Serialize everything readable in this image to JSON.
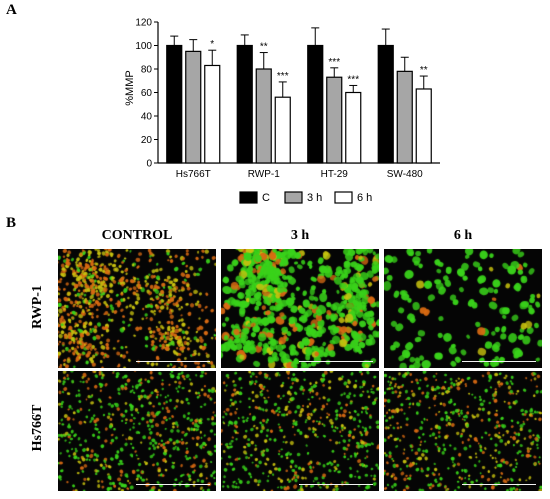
{
  "panelA": {
    "label": "A"
  },
  "panelB": {
    "label": "B",
    "columns": [
      "CONTROL",
      "3 h",
      "6 h"
    ],
    "rows": [
      "RWP-1",
      "Hs766T"
    ]
  },
  "colors": {
    "C": "#000000",
    "3h": "#a6a6a6",
    "6h": "#ffffff",
    "green": "#39d21a",
    "orange": "#d86a12",
    "yellow": "#c8c20f"
  },
  "chart_data": {
    "type": "bar",
    "ylabel": "%MMP",
    "ylim": [
      0,
      120
    ],
    "yticks": [
      0,
      20,
      40,
      60,
      80,
      100,
      120
    ],
    "categories": [
      "Hs766T",
      "RWP-1",
      "HT-29",
      "SW-480"
    ],
    "series": [
      {
        "name": "C",
        "values": [
          100,
          100,
          100,
          100
        ],
        "errors": [
          8,
          9,
          15,
          14
        ],
        "stars": [
          "",
          "",
          "",
          ""
        ]
      },
      {
        "name": "3 h",
        "values": [
          95,
          80,
          73,
          78
        ],
        "errors": [
          10,
          14,
          8,
          12
        ],
        "stars": [
          "",
          "**",
          "***",
          ""
        ]
      },
      {
        "name": "6 h",
        "values": [
          83,
          56,
          60,
          63
        ],
        "errors": [
          13,
          13,
          6,
          11
        ],
        "stars": [
          "*",
          "***",
          "***",
          "**"
        ]
      }
    ],
    "legend": {
      "placement": "bottom",
      "entries": [
        "C",
        "3 h",
        "6 h"
      ]
    }
  }
}
